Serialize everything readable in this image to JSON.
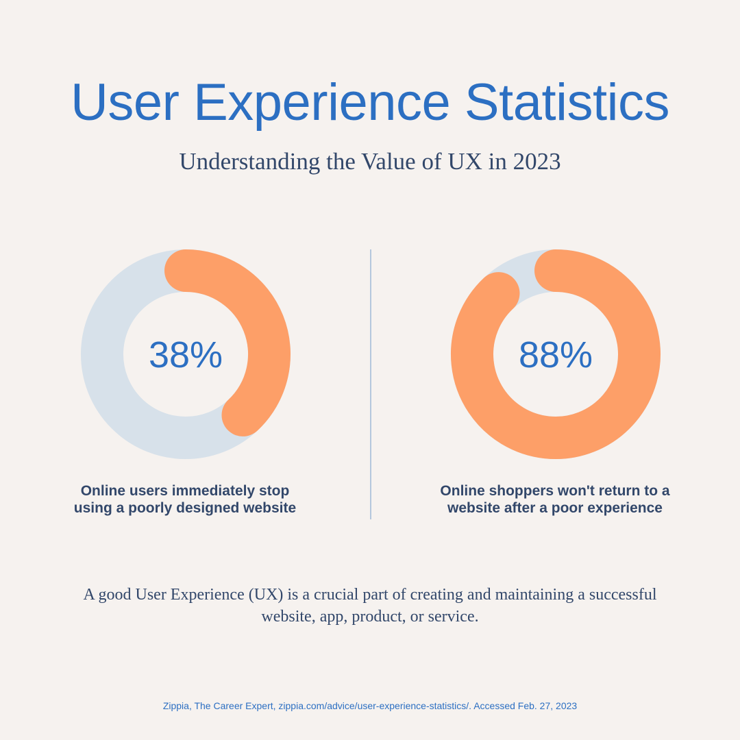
{
  "header": {
    "title": "User Experience Statistics",
    "subtitle": "Understanding the Value of UX in 2023"
  },
  "stats": [
    {
      "value_label": "38%",
      "caption": "Online users immediately stop using a poorly designed website"
    },
    {
      "value_label": "88%",
      "caption": "Online shoppers won't return to a website after a poor experience"
    }
  ],
  "chart_data": [
    {
      "type": "pie",
      "style": "donut",
      "value_percent": 38,
      "label": "38%",
      "caption": "Online users immediately stop using a poorly designed website"
    },
    {
      "type": "pie",
      "style": "donut",
      "value_percent": 88,
      "label": "88%",
      "caption": "Online shoppers won't return to a website after a poor experience"
    }
  ],
  "body": {
    "text": "A good User Experience (UX) is a crucial part of creating and maintaining a successful website, app, product, or service."
  },
  "footer": {
    "source": "Zippia, The Career Expert, zippia.com/advice/user-experience-statistics/. Accessed Feb. 27, 2023"
  },
  "colors": {
    "background": "#f6f2ef",
    "title": "#2c6fc2",
    "text": "#32476a",
    "ring_fill": "#fd9f68",
    "ring_track": "#d7e1ea",
    "divider": "#b4c7dd"
  }
}
